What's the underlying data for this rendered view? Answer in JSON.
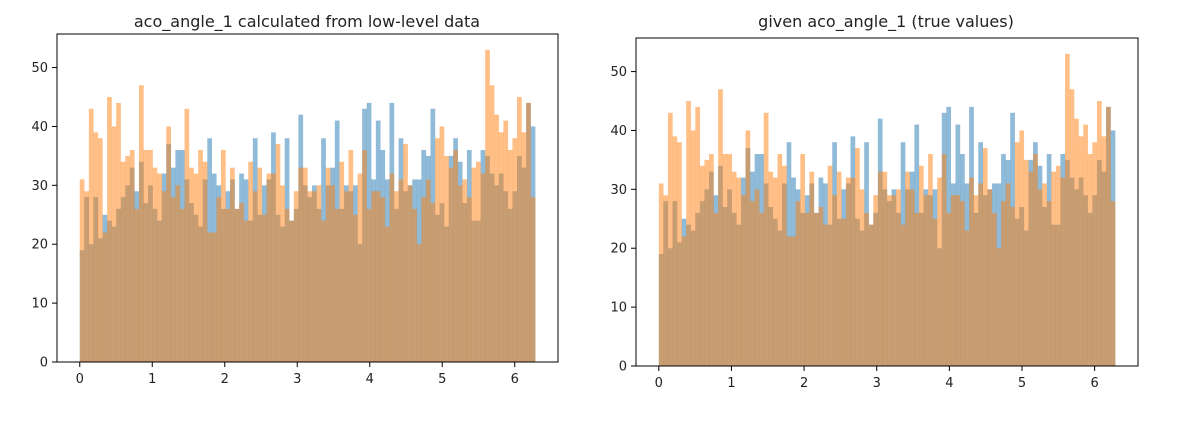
{
  "colors": {
    "series_blue": "#1f77b4",
    "series_orange": "#ff7f0e",
    "axis": "#000000"
  },
  "chart_data": [
    {
      "type": "bar",
      "title": "aco_angle_1 calculated from low-level data",
      "xlabel": "",
      "ylabel": "",
      "xlim": [
        -0.314,
        6.597
      ],
      "ylim": [
        0,
        55.7
      ],
      "xticks": [
        0,
        1,
        2,
        3,
        4,
        5,
        6
      ],
      "yticks": [
        0,
        10,
        20,
        30,
        40,
        50
      ],
      "grid": false,
      "bin_range": [
        0,
        6.2832
      ],
      "bins": 100,
      "series": [
        {
          "color": "#1f77b4",
          "opacity": 0.5,
          "values": [
            19,
            28,
            20,
            28,
            21,
            25,
            24,
            23,
            26,
            28,
            30,
            33,
            29,
            34,
            27,
            30,
            26,
            24,
            32,
            37,
            33,
            36,
            36,
            31,
            27,
            25,
            23,
            31,
            38,
            32,
            30,
            26,
            29,
            31,
            26,
            32,
            31,
            24,
            38,
            25,
            30,
            31,
            39,
            25,
            23,
            38,
            24,
            26,
            42,
            30,
            28,
            30,
            26,
            38,
            30,
            33,
            41,
            26,
            30,
            29,
            30,
            20,
            43,
            44,
            31,
            41,
            36,
            31,
            44,
            26,
            38,
            29,
            30,
            31,
            31,
            36,
            35,
            43,
            25,
            27,
            23,
            35,
            38,
            34,
            27,
            36,
            24,
            24,
            36,
            35,
            32,
            30,
            32,
            29,
            26,
            29,
            35,
            33,
            44,
            40
          ]
        },
        {
          "color": "#ff7f0e",
          "opacity": 0.5,
          "values": [
            31,
            29,
            43,
            39,
            38,
            22,
            45,
            40,
            44,
            34,
            35,
            36,
            26,
            47,
            36,
            36,
            33,
            32,
            29,
            40,
            28,
            30,
            26,
            43,
            33,
            32,
            36,
            34,
            22,
            22,
            28,
            36,
            26,
            33,
            26,
            27,
            24,
            34,
            29,
            33,
            25,
            32,
            32,
            37,
            30,
            26,
            24,
            29,
            33,
            33,
            29,
            29,
            30,
            24,
            33,
            30,
            26,
            34,
            29,
            36,
            25,
            32,
            36,
            26,
            29,
            29,
            28,
            23,
            32,
            29,
            31,
            37,
            30,
            26,
            20,
            28,
            31,
            27,
            38,
            40,
            35,
            33,
            36,
            30,
            31,
            28,
            33,
            34,
            32,
            53,
            47,
            42,
            39,
            41,
            36,
            38,
            45,
            39,
            44,
            28
          ]
        }
      ]
    },
    {
      "type": "bar",
      "title": "given aco_angle_1 (true values)",
      "xlabel": "",
      "ylabel": "",
      "xlim": [
        -0.314,
        6.597
      ],
      "ylim": [
        0,
        55.7
      ],
      "xticks": [
        0,
        1,
        2,
        3,
        4,
        5,
        6
      ],
      "yticks": [
        0,
        10,
        20,
        30,
        40,
        50
      ],
      "grid": false,
      "bin_range": [
        0,
        6.2832
      ],
      "bins": 100,
      "series": [
        {
          "color": "#1f77b4",
          "opacity": 0.5,
          "values": [
            19,
            28,
            20,
            28,
            21,
            25,
            24,
            23,
            26,
            28,
            30,
            33,
            29,
            34,
            27,
            30,
            26,
            24,
            32,
            37,
            33,
            36,
            36,
            31,
            27,
            25,
            23,
            31,
            38,
            32,
            30,
            26,
            29,
            31,
            26,
            32,
            31,
            24,
            38,
            25,
            30,
            31,
            39,
            25,
            23,
            38,
            24,
            26,
            42,
            30,
            28,
            30,
            26,
            38,
            30,
            33,
            41,
            26,
            30,
            29,
            30,
            20,
            43,
            44,
            31,
            41,
            36,
            31,
            44,
            26,
            38,
            29,
            30,
            31,
            31,
            36,
            35,
            43,
            25,
            27,
            23,
            35,
            38,
            34,
            27,
            36,
            24,
            24,
            36,
            35,
            32,
            30,
            32,
            29,
            26,
            29,
            35,
            33,
            44,
            40
          ]
        },
        {
          "color": "#ff7f0e",
          "opacity": 0.5,
          "values": [
            31,
            29,
            43,
            39,
            38,
            22,
            45,
            40,
            44,
            34,
            35,
            36,
            26,
            47,
            36,
            36,
            33,
            32,
            29,
            40,
            28,
            30,
            26,
            43,
            33,
            32,
            36,
            34,
            22,
            22,
            28,
            36,
            26,
            33,
            26,
            27,
            24,
            34,
            29,
            33,
            25,
            32,
            32,
            37,
            30,
            26,
            24,
            29,
            33,
            33,
            29,
            29,
            30,
            24,
            33,
            30,
            26,
            34,
            29,
            36,
            25,
            32,
            36,
            26,
            29,
            29,
            28,
            23,
            32,
            29,
            31,
            37,
            30,
            26,
            20,
            28,
            31,
            27,
            38,
            40,
            35,
            33,
            36,
            30,
            31,
            28,
            33,
            34,
            32,
            53,
            47,
            42,
            39,
            41,
            36,
            38,
            45,
            39,
            44,
            28
          ]
        }
      ]
    }
  ]
}
